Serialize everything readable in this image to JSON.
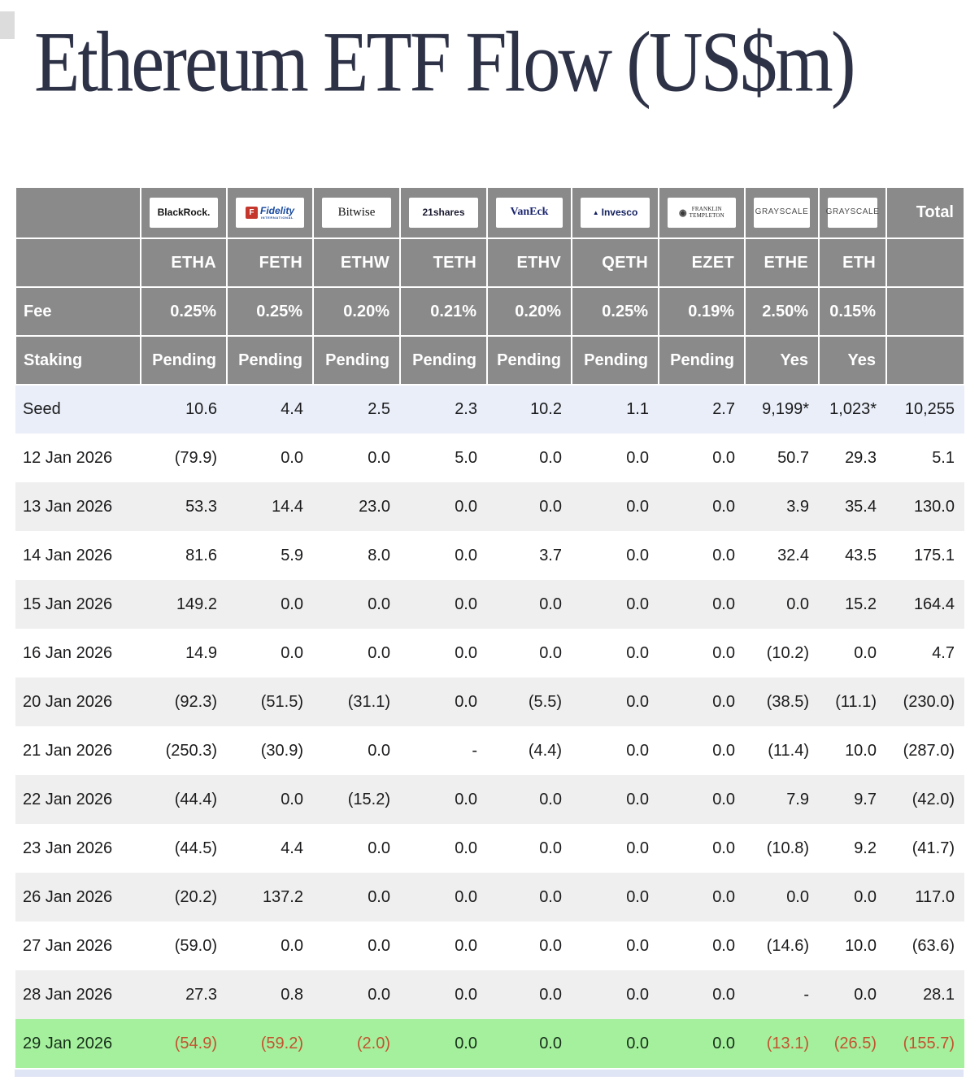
{
  "page": {
    "title": "Ethereum ETF Flow (US$m)"
  },
  "table": {
    "total_label": "Total",
    "meta_rows": {
      "fee_label": "Fee",
      "staking_label": "Staking"
    },
    "providers": [
      {
        "id": "blackrock",
        "name": "BlackRock.",
        "ticker": "ETHA",
        "fee": "0.25%",
        "staking": "Pending"
      },
      {
        "id": "fidelity",
        "name": "Fidelity",
        "sub": "INTERNATIONAL",
        "icon": "F",
        "ticker": "FETH",
        "fee": "0.25%",
        "staking": "Pending"
      },
      {
        "id": "bitwise",
        "name": "Bitwise",
        "ticker": "ETHW",
        "fee": "0.20%",
        "staking": "Pending"
      },
      {
        "id": "21shares",
        "name": "21shares",
        "ticker": "TETH",
        "fee": "0.21%",
        "staking": "Pending"
      },
      {
        "id": "vaneck",
        "name": "VanEck",
        "ticker": "ETHV",
        "fee": "0.20%",
        "staking": "Pending"
      },
      {
        "id": "invesco",
        "name": "Invesco",
        "icon": "▲",
        "ticker": "QETH",
        "fee": "0.25%",
        "staking": "Pending"
      },
      {
        "id": "franklin-templeton",
        "name": "FRANKLIN TEMPLETON",
        "lines": [
          "FRANKLIN",
          "TEMPLETON"
        ],
        "icon": "◉",
        "ticker": "EZET",
        "fee": "0.19%",
        "staking": "Pending"
      },
      {
        "id": "grayscale-ethe",
        "name": "GRAYSCALE",
        "ticker": "ETHE",
        "fee": "2.50%",
        "staking": "Yes"
      },
      {
        "id": "grayscale-eth",
        "name": "GRAYSCALE",
        "ticker": "ETH",
        "fee": "0.15%",
        "staking": "Yes"
      }
    ]
  },
  "chart_data": {
    "type": "table",
    "title": "Ethereum ETF Flow (US$m)",
    "columns": [
      "",
      "ETHA",
      "FETH",
      "ETHW",
      "TETH",
      "ETHV",
      "QETH",
      "EZET",
      "ETHE",
      "ETH",
      "Total"
    ],
    "fee_row": [
      "Fee",
      "0.25%",
      "0.25%",
      "0.20%",
      "0.21%",
      "0.20%",
      "0.25%",
      "0.19%",
      "2.50%",
      "0.15%",
      ""
    ],
    "staking_row": [
      "Staking",
      "Pending",
      "Pending",
      "Pending",
      "Pending",
      "Pending",
      "Pending",
      "Pending",
      "Yes",
      "Yes",
      ""
    ],
    "rows": [
      {
        "label": "Seed",
        "values": [
          "10.6",
          "4.4",
          "2.5",
          "2.3",
          "10.2",
          "1.1",
          "2.7",
          "9,199*",
          "1,023*",
          "10,255"
        ],
        "highlight": "seed"
      },
      {
        "label": "12 Jan 2026",
        "values": [
          "(79.9)",
          "0.0",
          "0.0",
          "5.0",
          "0.0",
          "0.0",
          "0.0",
          "50.7",
          "29.3",
          "5.1"
        ]
      },
      {
        "label": "13 Jan 2026",
        "values": [
          "53.3",
          "14.4",
          "23.0",
          "0.0",
          "0.0",
          "0.0",
          "0.0",
          "3.9",
          "35.4",
          "130.0"
        ]
      },
      {
        "label": "14 Jan 2026",
        "values": [
          "81.6",
          "5.9",
          "8.0",
          "0.0",
          "3.7",
          "0.0",
          "0.0",
          "32.4",
          "43.5",
          "175.1"
        ]
      },
      {
        "label": "15 Jan 2026",
        "values": [
          "149.2",
          "0.0",
          "0.0",
          "0.0",
          "0.0",
          "0.0",
          "0.0",
          "0.0",
          "15.2",
          "164.4"
        ]
      },
      {
        "label": "16 Jan 2026",
        "values": [
          "14.9",
          "0.0",
          "0.0",
          "0.0",
          "0.0",
          "0.0",
          "0.0",
          "(10.2)",
          "0.0",
          "4.7"
        ]
      },
      {
        "label": "20 Jan 2026",
        "values": [
          "(92.3)",
          "(51.5)",
          "(31.1)",
          "0.0",
          "(5.5)",
          "0.0",
          "0.0",
          "(38.5)",
          "(11.1)",
          "(230.0)"
        ]
      },
      {
        "label": "21 Jan 2026",
        "values": [
          "(250.3)",
          "(30.9)",
          "0.0",
          "-",
          "(4.4)",
          "0.0",
          "0.0",
          "(11.4)",
          "10.0",
          "(287.0)"
        ]
      },
      {
        "label": "22 Jan 2026",
        "values": [
          "(44.4)",
          "0.0",
          "(15.2)",
          "0.0",
          "0.0",
          "0.0",
          "0.0",
          "7.9",
          "9.7",
          "(42.0)"
        ]
      },
      {
        "label": "23 Jan 2026",
        "values": [
          "(44.5)",
          "4.4",
          "0.0",
          "0.0",
          "0.0",
          "0.0",
          "0.0",
          "(10.8)",
          "9.2",
          "(41.7)"
        ]
      },
      {
        "label": "26 Jan 2026",
        "values": [
          "(20.2)",
          "137.2",
          "0.0",
          "0.0",
          "0.0",
          "0.0",
          "0.0",
          "0.0",
          "0.0",
          "117.0"
        ]
      },
      {
        "label": "27 Jan 2026",
        "values": [
          "(59.0)",
          "0.0",
          "0.0",
          "0.0",
          "0.0",
          "0.0",
          "0.0",
          "(14.6)",
          "10.0",
          "(63.6)"
        ]
      },
      {
        "label": "28 Jan 2026",
        "values": [
          "27.3",
          "0.8",
          "0.0",
          "0.0",
          "0.0",
          "0.0",
          "0.0",
          "-",
          "0.0",
          "28.1"
        ]
      },
      {
        "label": "29 Jan 2026",
        "values": [
          "(54.9)",
          "(59.2)",
          "(2.0)",
          "0.0",
          "0.0",
          "0.0",
          "0.0",
          "(13.1)",
          "(26.5)",
          "(155.7)"
        ],
        "highlight": "green"
      }
    ]
  },
  "colors": {
    "title_text": "#2e3247",
    "header_bg": "#8a8a8a",
    "header_text": "#ffffff",
    "body_text": "#1b1b1d",
    "negative": "#e0362c",
    "negative_on_green": "#c2532f",
    "seed_row_bg": "#e9eef8",
    "alt_row_bg": "#efefef",
    "green_row_bg": "#a5f09d",
    "partial_row_bg": "#e0e5f5"
  }
}
